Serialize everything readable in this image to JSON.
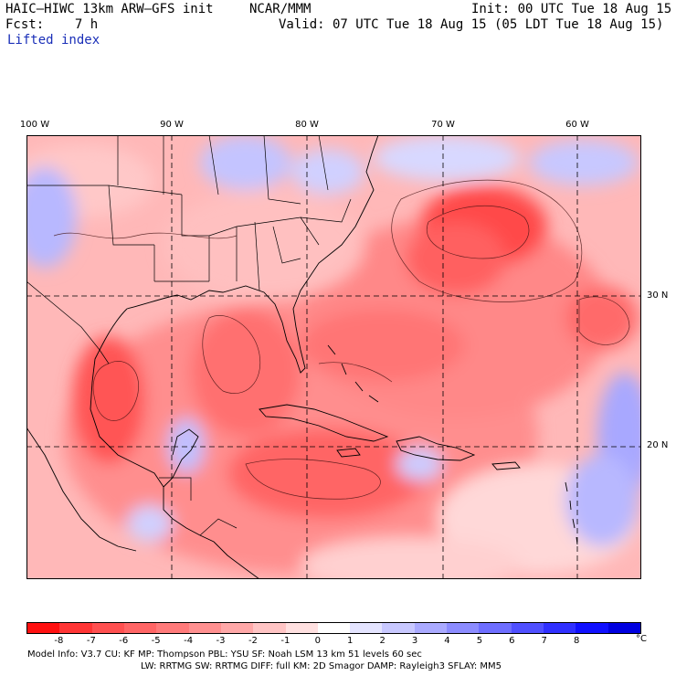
{
  "header": {
    "model_title": "HAIC–HIWC 13km ARW–GFS init",
    "org": "NCAR/MMM",
    "init": "Init: 00 UTC Tue 18 Aug 15",
    "fcst": "Fcst:    7 h",
    "valid": "Valid: 07 UTC Tue 18 Aug 15 (05 LDT Tue 18 Aug 15)",
    "field": "Lifted index"
  },
  "axes": {
    "lon_labels": [
      "100 W",
      "90 W",
      "80 W",
      "70 W",
      "60 W"
    ],
    "lat_labels": [
      "30 N",
      "20 N"
    ]
  },
  "colorbar": {
    "labels": [
      "-8",
      "-7",
      "-6",
      "-5",
      "-4",
      "-3",
      "-2",
      "-1",
      "0",
      "1",
      "2",
      "3",
      "4",
      "5",
      "6",
      "7",
      "8"
    ],
    "unit": "°C",
    "colors": [
      "#ff1010",
      "#ff3535",
      "#ff5050",
      "#ff6565",
      "#ff7a7a",
      "#ff9090",
      "#ffa8a8",
      "#ffc4c4",
      "#ffe0e0",
      "#ffffff",
      "#e4e4ff",
      "#c8c8ff",
      "#aaaaff",
      "#8c8cff",
      "#6e6eff",
      "#5050ff",
      "#3030ff",
      "#1010ff",
      "#0000e0"
    ]
  },
  "model_info": {
    "line1": "Model Info: V3.7       CU: KF         MP: Thompson      PBL: YSU          SF: Noah LSM      13 km    51 levels    60 sec",
    "line2": "LW: RRTMG      SW: RRTMG   DIFF: full    KM: 2D Smagor DAMP: Rayleigh3   SFLAY: MM5"
  },
  "legend_colors": {
    "strong_unstable": "#ff3030",
    "unstable": "#ff8080",
    "weak_unstable": "#ffc0c0",
    "neutral": "#ffffff",
    "stable": "#b8b8ff"
  }
}
